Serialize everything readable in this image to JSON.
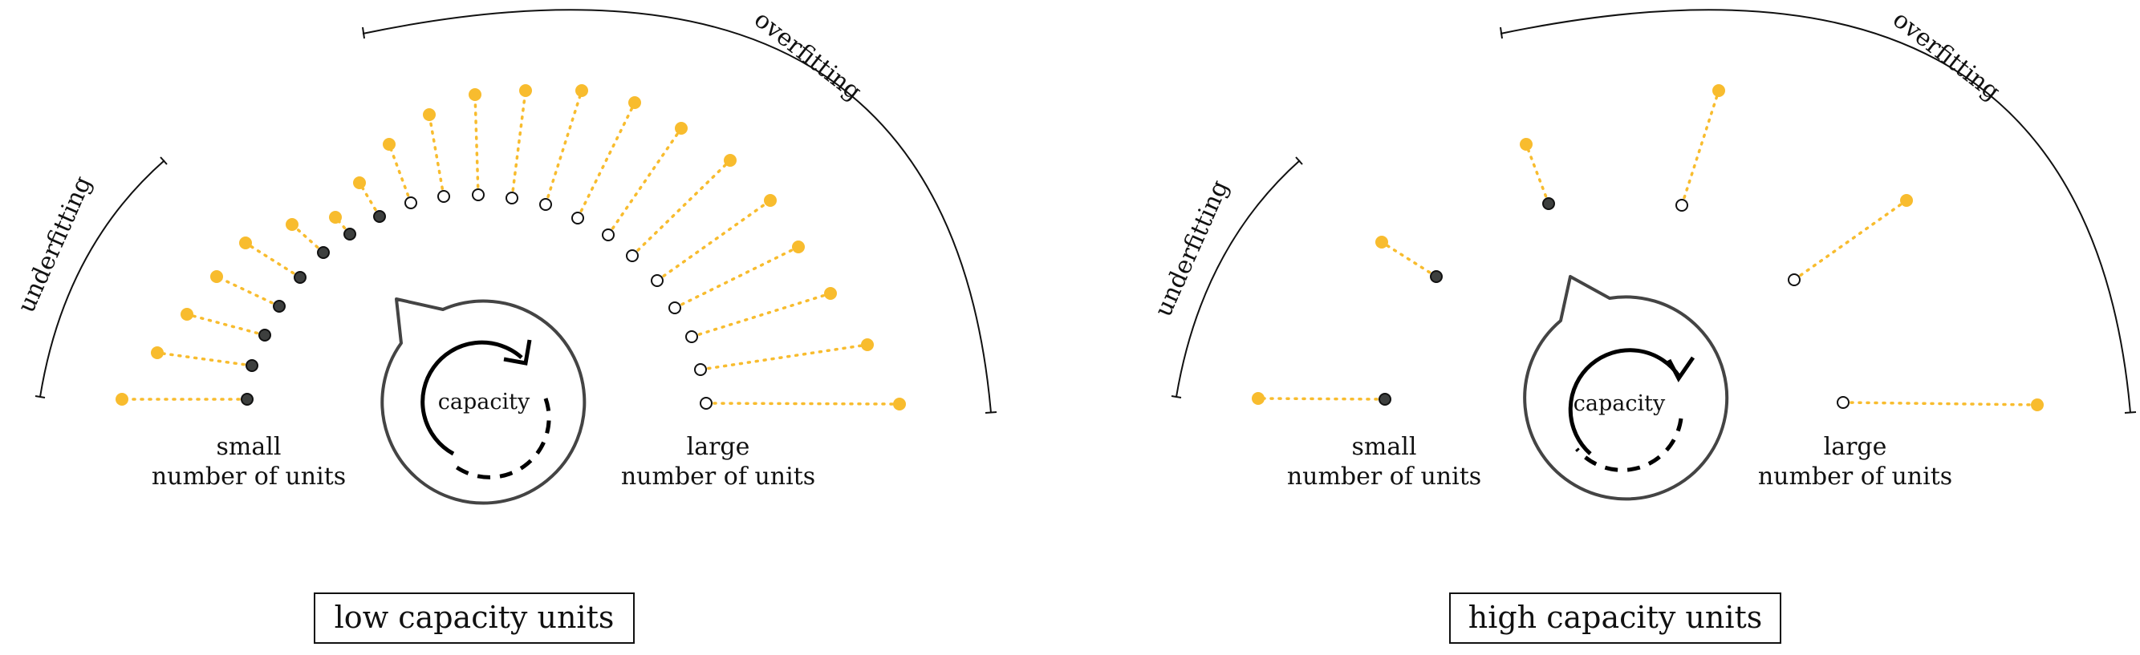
{
  "colors": {
    "accent": "#f8bc2e",
    "dark_unit": "#3d3f3e",
    "stroke": "#111111",
    "cycle_outline": "#444444"
  },
  "panels": [
    {
      "id": "low",
      "caption": "low capacity units",
      "label_underfitting": "underfitting",
      "label_overfitting": "overfitting",
      "cycle_label": "capacity",
      "left_label": [
        "small",
        "number of units"
      ],
      "right_label": [
        "large",
        "number of units"
      ],
      "units_filled_count": 8,
      "units_total": 20
    },
    {
      "id": "high",
      "caption": "high capacity units",
      "label_underfitting": "underfitting",
      "label_overfitting": "overfitting",
      "cycle_label": "capacity",
      "left_label": [
        "small",
        "number of units"
      ],
      "right_label": [
        "large",
        "number of units"
      ],
      "units_filled_count": 3,
      "units_total": 6
    }
  ]
}
